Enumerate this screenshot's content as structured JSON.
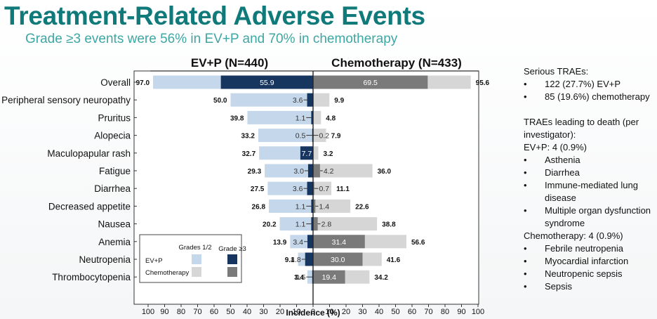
{
  "title": "Treatment-Related Adverse Events",
  "subtitle": "Grade ≥3 events were 56% in EV+P and 70% in chemotherapy",
  "chart_data": {
    "type": "bar",
    "orientation": "horizontal-butterfly",
    "left_header": "EV+P (N=440)",
    "right_header": "Chemotherapy (N=433)",
    "xlabel": "Incidence (%)",
    "xlim": [
      0,
      100
    ],
    "xticks": [
      100,
      90,
      80,
      70,
      60,
      50,
      40,
      30,
      20,
      10,
      0,
      10,
      20,
      30,
      40,
      50,
      60,
      70,
      80,
      90,
      100
    ],
    "categories": [
      "Overall",
      "Peripheral sensory neuropathy",
      "Pruritus",
      "Alopecia",
      "Maculopapular rash",
      "Fatigue",
      "Diarrhea",
      "Decreased appetite",
      "Nausea",
      "Anemia",
      "Neutropenia",
      "Thrombocytopenia"
    ],
    "series": [
      {
        "name": "EV+P",
        "key": "evp_total",
        "values": [
          97.0,
          50.0,
          39.8,
          33.2,
          32.7,
          29.3,
          27.5,
          26.8,
          20.2,
          13.9,
          9.1,
          3.4
        ]
      },
      {
        "name": "EV+P",
        "key": "evp_g3",
        "values": [
          "55.9",
          "3.6",
          "1.1",
          "0.5",
          "7.7",
          "3.0",
          "3.6",
          "1.1",
          "1.1",
          "3.4",
          "4.8",
          "0.5"
        ]
      },
      {
        "name": "Chemotherapy",
        "key": "chemo_total",
        "values": [
          95.6,
          9.9,
          4.8,
          7.9,
          3.2,
          36.0,
          11.1,
          22.6,
          38.8,
          56.6,
          41.6,
          34.2
        ]
      },
      {
        "name": "Chemotherapy",
        "key": "chemo_g3",
        "values": [
          "69.5",
          "",
          "",
          "0.2",
          "",
          "4.2",
          "0.7",
          "1.4",
          "2.8",
          "31.4",
          "30.0",
          "19.4"
        ]
      }
    ],
    "legend": {
      "position": "bottom-left",
      "col_headers": [
        "Grades 1/2",
        "Grade ≥3"
      ],
      "rows": [
        "EV+P",
        "Chemotherapy"
      ]
    },
    "colors": {
      "evp_g12": "#c5d7ea",
      "evp_g3": "#16355f",
      "chemo_g12": "#d6d6d6",
      "chemo_g3": "#7a7a7a"
    }
  },
  "side_panel": {
    "serious_heading": "Serious TRAEs:",
    "serious_items": [
      "122 (27.7%) EV+P",
      "85 (19.6%) chemotherapy"
    ],
    "death_heading": "TRAEs leading to death (per investigator):",
    "evp_deaths_heading": "EV+P: 4 (0.9%)",
    "evp_deaths": [
      "Asthenia",
      "Diarrhea",
      "Immune-mediated lung disease",
      "Multiple organ dysfunction syndrome"
    ],
    "chemo_deaths_heading": "Chemotherapy: 4 (0.9%)",
    "chemo_deaths": [
      "Febrile neutropenia",
      "Myocardial infarction",
      "Neutropenic sepsis",
      "Sepsis"
    ]
  }
}
